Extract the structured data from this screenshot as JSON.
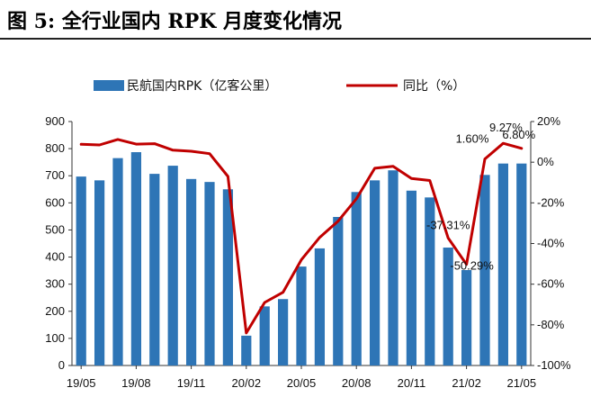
{
  "figure": {
    "title": "图 5: 全行业国内 RPK 月度变化情况"
  },
  "chart_data": {
    "type": "bar",
    "x": [
      "19/05",
      "19/06",
      "19/07",
      "19/08",
      "19/09",
      "19/10",
      "19/11",
      "19/12",
      "20/01",
      "20/02",
      "20/03",
      "20/04",
      "20/05",
      "20/06",
      "20/07",
      "20/08",
      "20/09",
      "20/10",
      "20/11",
      "20/12",
      "21/01",
      "21/02",
      "21/03",
      "21/04",
      "21/05"
    ],
    "x_tick_labels": [
      "19/05",
      "19/08",
      "19/11",
      "20/02",
      "20/05",
      "20/08",
      "20/11",
      "21/02",
      "21/05"
    ],
    "series": [
      {
        "name": "民航国内RPK（亿客公里）",
        "type": "bar",
        "axis": "left",
        "color": "#2E75B6",
        "values": [
          697,
          683,
          765,
          787,
          707,
          737,
          688,
          677,
          650,
          110,
          218,
          245,
          365,
          432,
          548,
          640,
          683,
          720,
          645,
          620,
          435,
          352,
          703,
          745,
          745
        ]
      },
      {
        "name": "同比（%）",
        "type": "line",
        "axis": "right",
        "color": "#C00000",
        "values": [
          8.8,
          8.5,
          11.2,
          8.9,
          9.1,
          5.9,
          5.4,
          4.2,
          -7.0,
          -84.0,
          -69.0,
          -64.0,
          -48.0,
          -37.0,
          -29.0,
          -18.0,
          -3.0,
          -2.0,
          -8.0,
          -9.0,
          -37.31,
          -50.29,
          1.6,
          9.27,
          6.8
        ]
      }
    ],
    "annotations": [
      "-37.31%",
      "-50.29%",
      "1.60%",
      "9.27%",
      "6.80%"
    ],
    "y_left": {
      "min": 0,
      "max": 900,
      "step": 100,
      "ticks": [
        "0",
        "100",
        "200",
        "300",
        "400",
        "500",
        "600",
        "700",
        "800",
        "900"
      ]
    },
    "y_right": {
      "min": -100,
      "max": 20,
      "step": 20,
      "ticks": [
        "-100%",
        "-80%",
        "-60%",
        "-40%",
        "-20%",
        "0%",
        "20%"
      ]
    },
    "legend": {
      "position": "top",
      "items": [
        "民航国内RPK（亿客公里）",
        "同比（%）"
      ]
    },
    "grid": false
  }
}
